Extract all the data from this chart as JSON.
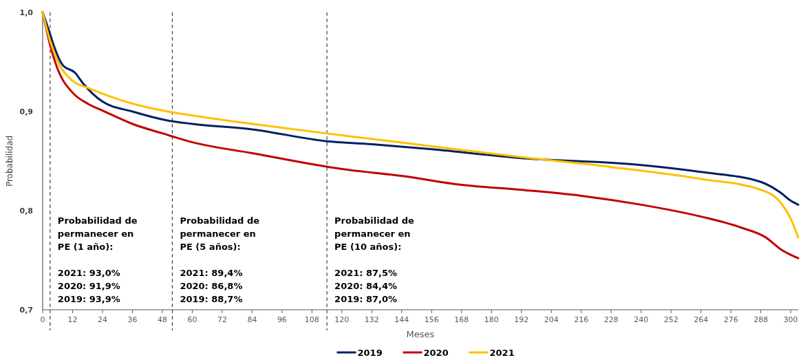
{
  "chart_data": {
    "type": "line",
    "xlabel": "Meses",
    "ylabel": "Probabilidad",
    "xlim": [
      0,
      303
    ],
    "ylim": [
      0.7,
      1.0
    ],
    "xticks": [
      0,
      12,
      24,
      36,
      48,
      60,
      72,
      84,
      96,
      108,
      120,
      132,
      144,
      156,
      168,
      180,
      192,
      204,
      216,
      228,
      240,
      252,
      264,
      276,
      288,
      300
    ],
    "yticks": [
      {
        "value": 0.7,
        "label": "0,7"
      },
      {
        "value": 0.8,
        "label": "0,8"
      },
      {
        "value": 0.9,
        "label": "0,9"
      },
      {
        "value": 1.0,
        "label": "1,0"
      }
    ],
    "grid": false,
    "legend": "bottom",
    "line_style": "solid",
    "marker": "none",
    "ref_lines": [
      {
        "axis": "x",
        "value": 3,
        "color": "#404040",
        "line_style": "dashed"
      },
      {
        "axis": "x",
        "value": 52,
        "color": "#404040",
        "line_style": "dashed"
      },
      {
        "axis": "x",
        "value": 114,
        "color": "#404040",
        "line_style": "dashed"
      }
    ],
    "annotations": [
      "Probabilidad de\npermanecer en\nPE (1 año):\n\n2021: 93,0%\n2020: 91,9%\n2019: 93,9%",
      "Probabilidad de\npermanecer en\nPE (5 años):\n\n2021: 89,4%\n2020: 86,8%\n2019: 88,7%",
      "Probabilidad de\npermanecer en\nPE (10 años):\n\n2021: 87,5%\n2020: 84,4%\n2019: 87,0%"
    ],
    "series": [
      {
        "name": "2019",
        "color": "#002060",
        "x": [
          0,
          3,
          4.4,
          8,
          13,
          16,
          24,
          36,
          50,
          60,
          84,
          114,
          132,
          156,
          192,
          240,
          264,
          288,
          296,
          300,
          303
        ],
        "values": [
          1.0,
          0.978,
          0.967,
          0.947,
          0.939,
          0.929,
          0.91,
          0.9,
          0.891,
          0.8875,
          0.882,
          0.87,
          0.867,
          0.862,
          0.853,
          0.846,
          0.839,
          0.829,
          0.818,
          0.81,
          0.806
        ]
      },
      {
        "name": "2020",
        "color": "#c00000",
        "x": [
          0,
          3,
          6,
          12,
          18,
          24,
          36,
          48,
          60,
          84,
          120,
          144,
          168,
          192,
          216,
          240,
          264,
          280,
          290,
          296,
          303
        ],
        "values": [
          1.0,
          0.967,
          0.943,
          0.919,
          0.908,
          0.901,
          0.8875,
          0.878,
          0.869,
          0.858,
          0.842,
          0.835,
          0.826,
          0.821,
          0.815,
          0.806,
          0.794,
          0.783,
          0.773,
          0.761,
          0.752
        ]
      },
      {
        "name": "2021",
        "color": "#ffc000",
        "x": [
          0,
          3,
          6,
          12,
          18,
          24,
          36,
          48,
          60,
          84,
          120,
          156,
          192,
          228,
          264,
          288,
          296,
          300,
          303
        ],
        "values": [
          1.0,
          0.971,
          0.951,
          0.931,
          0.924,
          0.918,
          0.908,
          0.901,
          0.896,
          0.8875,
          0.876,
          0.865,
          0.854,
          0.844,
          0.832,
          0.821,
          0.808,
          0.792,
          0.773
        ]
      }
    ]
  }
}
